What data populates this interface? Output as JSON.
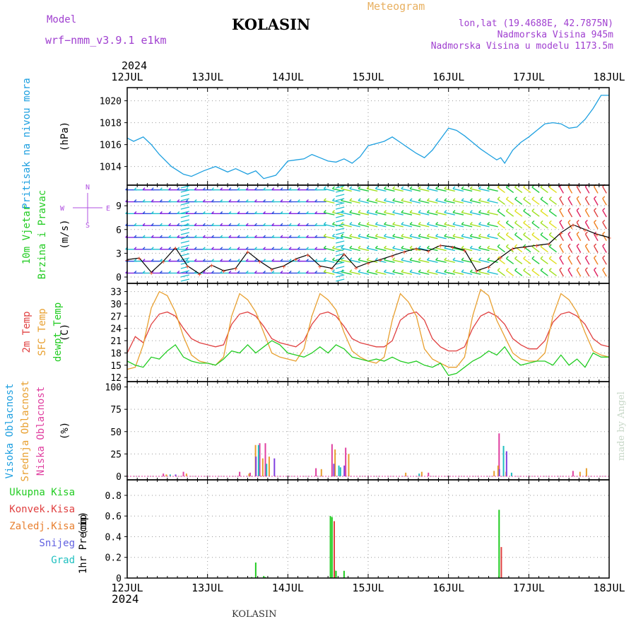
{
  "header": {
    "model_label": "Model",
    "model_name": "wrf−nmm_v3.9.1  e1km",
    "station": "KOLASIN",
    "meteogram": "Meteogram",
    "lonlat": "lon,lat (19.4688E, 42.7875N)",
    "elevation": "Nadmorska Visina 945m",
    "model_elevation": "Nadmorska Visina u modelu 1173.5m",
    "year": "2024",
    "footer_station": "KOLASIN",
    "credit": "made by Angel"
  },
  "x_ticks": [
    "12JUL",
    "13JUL",
    "14JUL",
    "15JUL",
    "16JUL",
    "17JUL",
    "18JUL"
  ],
  "chart_data": [
    {
      "type": "line",
      "panel": "pressure",
      "ylabel": "Pritisak na nivou mora",
      "unit": "(hPa)",
      "yticks": [
        1014,
        1016,
        1018,
        1020
      ],
      "ylim": [
        1012.3,
        1021.2
      ],
      "xlim": [
        0,
        6
      ],
      "series": [
        {
          "color": "#1ea0e0",
          "x": [
            0,
            0.08,
            0.2,
            0.3,
            0.4,
            0.55,
            0.7,
            0.8,
            0.95,
            1.1,
            1.25,
            1.35,
            1.5,
            1.6,
            1.7,
            1.85,
            2.0,
            2.1,
            2.2,
            2.3,
            2.4,
            2.5,
            2.6,
            2.7,
            2.8,
            2.9,
            3.0,
            3.1,
            3.2,
            3.3,
            3.4,
            3.5,
            3.6,
            3.7,
            3.8,
            3.9,
            4.0,
            4.1,
            4.2,
            4.3,
            4.4,
            4.5,
            4.6,
            4.65,
            4.7,
            4.8,
            4.9,
            5.0,
            5.1,
            5.2,
            5.3,
            5.4,
            5.5,
            5.6,
            5.7,
            5.8,
            5.9,
            6.0
          ],
          "y": [
            1016.6,
            1016.3,
            1016.7,
            1016.0,
            1015.1,
            1014.0,
            1013.3,
            1013.1,
            1013.6,
            1014.0,
            1013.5,
            1013.8,
            1013.3,
            1013.6,
            1012.9,
            1013.2,
            1014.5,
            1014.6,
            1014.7,
            1015.1,
            1014.8,
            1014.5,
            1014.4,
            1014.7,
            1014.3,
            1014.9,
            1015.9,
            1016.1,
            1016.3,
            1016.7,
            1016.2,
            1015.7,
            1015.2,
            1014.8,
            1015.5,
            1016.5,
            1017.5,
            1017.3,
            1016.8,
            1016.2,
            1015.6,
            1015.1,
            1014.6,
            1014.8,
            1014.3,
            1015.5,
            1016.2,
            1016.7,
            1017.3,
            1017.9,
            1018.0,
            1017.9,
            1017.5,
            1017.6,
            1018.3,
            1019.3,
            1020.5,
            1020.5
          ]
        }
      ]
    },
    {
      "type": "scatter",
      "panel": "wind",
      "ylabel": "10m Vjetar",
      "ylabel2": "Brzina i Pravac",
      "unit": "(m/s)",
      "yticks": [
        0,
        3,
        6,
        9
      ],
      "ylim": [
        -0.8,
        11.6
      ],
      "xlim": [
        0,
        6
      ],
      "compass": {
        "n": "N",
        "s": "S",
        "w": "W",
        "e": "E"
      },
      "series": [
        {
          "name_note": "speed",
          "color": "#000000",
          "x": [
            0,
            0.15,
            0.3,
            0.45,
            0.6,
            0.75,
            0.9,
            1.05,
            1.2,
            1.35,
            1.5,
            1.65,
            1.8,
            1.95,
            2.1,
            2.25,
            2.4,
            2.55,
            2.7,
            2.85,
            3.0,
            3.15,
            3.3,
            3.45,
            3.6,
            3.75,
            3.9,
            4.05,
            4.2,
            4.35,
            4.5,
            4.65,
            4.8,
            4.95,
            5.1,
            5.25,
            5.4,
            5.55,
            5.7,
            5.85,
            6.0
          ],
          "y": [
            2.2,
            2.4,
            0.6,
            2.0,
            3.7,
            1.4,
            0.4,
            1.5,
            0.8,
            1.1,
            3.2,
            2.0,
            1.0,
            1.4,
            2.3,
            2.8,
            1.4,
            1.1,
            2.9,
            1.2,
            1.8,
            2.2,
            2.7,
            3.2,
            3.6,
            3.3,
            4.0,
            3.8,
            3.4,
            0.8,
            1.3,
            2.5,
            3.6,
            3.8,
            4.0,
            4.2,
            5.6,
            6.6,
            6.0,
            5.4,
            5.0
          ]
        }
      ]
    },
    {
      "type": "line",
      "panel": "temperature",
      "ylabel": "2m Temp",
      "ylabel2": "SFC Temp",
      "ylabel3": "dewpt Temp",
      "unit": "(C)",
      "yticks": [
        12,
        15,
        18,
        21,
        24,
        27,
        30,
        33
      ],
      "ylim": [
        11.0,
        35.0
      ],
      "xlim": [
        0,
        6
      ],
      "series": [
        {
          "color": "#e04040",
          "x": [
            0,
            0.1,
            0.2,
            0.3,
            0.4,
            0.5,
            0.6,
            0.7,
            0.8,
            0.9,
            1.0,
            1.1,
            1.2,
            1.3,
            1.4,
            1.5,
            1.6,
            1.7,
            1.8,
            1.9,
            2.0,
            2.1,
            2.2,
            2.3,
            2.4,
            2.5,
            2.6,
            2.7,
            2.8,
            2.9,
            3.0,
            3.1,
            3.2,
            3.3,
            3.4,
            3.5,
            3.6,
            3.7,
            3.8,
            3.9,
            4.0,
            4.1,
            4.2,
            4.3,
            4.4,
            4.5,
            4.6,
            4.7,
            4.8,
            4.9,
            5.0,
            5.1,
            5.2,
            5.3,
            5.4,
            5.5,
            5.6,
            5.7,
            5.8,
            5.9,
            6.0
          ],
          "y": [
            18,
            22,
            20.5,
            25,
            27.5,
            28,
            27,
            24,
            21.5,
            20.5,
            20,
            19.5,
            20,
            25,
            27.5,
            28,
            27,
            24.5,
            21.5,
            20.5,
            20,
            19.5,
            21,
            25,
            27.5,
            28,
            27,
            24.5,
            21.5,
            20.5,
            20,
            19.5,
            19.5,
            21,
            26,
            27.5,
            28,
            26,
            21.5,
            19.5,
            18.5,
            18.5,
            19.5,
            24,
            27,
            28,
            27,
            25,
            21.5,
            20,
            19,
            19,
            21,
            25.5,
            27.5,
            28,
            27,
            25,
            21.5,
            20,
            19.5
          ]
        },
        {
          "color": "#e8a030",
          "x": [
            0,
            0.1,
            0.2,
            0.3,
            0.4,
            0.5,
            0.6,
            0.7,
            0.8,
            0.9,
            1.0,
            1.1,
            1.2,
            1.3,
            1.4,
            1.5,
            1.6,
            1.7,
            1.8,
            1.9,
            2.0,
            2.1,
            2.2,
            2.3,
            2.4,
            2.5,
            2.6,
            2.7,
            2.8,
            2.9,
            3.0,
            3.1,
            3.2,
            3.3,
            3.4,
            3.5,
            3.6,
            3.7,
            3.8,
            3.9,
            4.0,
            4.1,
            4.2,
            4.3,
            4.4,
            4.5,
            4.6,
            4.7,
            4.8,
            4.9,
            5.0,
            5.1,
            5.2,
            5.3,
            5.4,
            5.5,
            5.6,
            5.7,
            5.8,
            5.9,
            6.0
          ],
          "y": [
            14,
            14.5,
            20,
            29,
            33,
            32,
            28,
            22,
            17.5,
            16,
            15.5,
            15,
            17,
            27,
            32.5,
            31,
            28,
            23,
            18,
            17,
            16.5,
            16,
            19,
            27,
            32.5,
            31,
            28.5,
            23,
            18.5,
            17,
            16,
            15.5,
            17,
            26,
            32.5,
            30.5,
            27,
            19,
            16.5,
            15.5,
            14.5,
            14.5,
            17,
            27,
            33.5,
            32,
            26,
            22,
            18,
            16.5,
            16,
            16,
            18,
            27,
            32.5,
            31,
            28,
            23,
            18.5,
            17.5,
            17
          ]
        },
        {
          "color": "#22cc22",
          "x": [
            0,
            0.1,
            0.2,
            0.3,
            0.4,
            0.5,
            0.6,
            0.7,
            0.8,
            0.9,
            1.0,
            1.1,
            1.2,
            1.3,
            1.4,
            1.5,
            1.6,
            1.7,
            1.8,
            1.9,
            2.0,
            2.1,
            2.2,
            2.3,
            2.4,
            2.5,
            2.6,
            2.7,
            2.8,
            2.9,
            3.0,
            3.1,
            3.2,
            3.3,
            3.4,
            3.5,
            3.6,
            3.7,
            3.8,
            3.9,
            4.0,
            4.1,
            4.2,
            4.3,
            4.4,
            4.5,
            4.6,
            4.7,
            4.8,
            4.9,
            5.0,
            5.1,
            5.2,
            5.3,
            5.4,
            5.5,
            5.6,
            5.7,
            5.8,
            5.9,
            6.0
          ],
          "y": [
            16,
            15,
            14.5,
            17,
            16.5,
            18.5,
            20,
            17,
            16,
            15.5,
            15.5,
            15,
            16.5,
            18.5,
            18,
            20,
            18,
            19.5,
            21,
            20,
            18,
            17.5,
            17,
            18,
            19.5,
            18,
            20,
            19,
            17,
            16.5,
            16,
            16.5,
            16,
            17,
            16,
            15.5,
            16,
            15,
            14.5,
            15.5,
            12.5,
            13,
            14.5,
            16,
            17,
            18.5,
            17.5,
            19.5,
            16.5,
            15,
            15.5,
            16,
            16,
            15,
            17.5,
            15,
            16.5,
            14.5,
            18,
            17,
            17
          ]
        }
      ]
    },
    {
      "type": "bar",
      "panel": "clouds",
      "ylabel": "Visoka Oblacnost",
      "ylabel2": "Srednja Oblacnost",
      "ylabel3": "Niska Oblacnost",
      "unit": "(%)",
      "yticks": [
        0,
        25,
        50,
        75,
        100
      ],
      "ylim": [
        -4,
        106
      ],
      "xlim": [
        0,
        6
      ],
      "series": [
        {
          "color": "#e040a0",
          "x": [
            0.45,
            0.7,
            1.4,
            1.53,
            1.65,
            1.72,
            2.35,
            2.55,
            2.72,
            3.75,
            4.63,
            5.55
          ],
          "y": [
            3,
            5,
            5,
            4,
            37,
            37,
            9,
            36,
            32,
            4,
            48,
            6
          ]
        },
        {
          "color": "#e8a030",
          "x": [
            0.47,
            0.72,
            1.5,
            1.58,
            1.67,
            1.75,
            2.4,
            2.57,
            2.74,
            3.45,
            3.65,
            4.55,
            4.6,
            4.7,
            5.62,
            5.7
          ],
          "y": [
            2,
            3,
            3,
            35,
            20,
            22,
            8,
            30,
            25,
            4,
            5,
            6,
            12,
            5,
            5,
            9
          ]
        },
        {
          "color": "#20c0c0",
          "x": [
            0.5,
            1.6,
            1.7,
            2.6,
            2.62,
            3.6,
            4.65,
            4.75
          ],
          "y": [
            2,
            35,
            14,
            12,
            10,
            3,
            34,
            4
          ]
        },
        {
          "color": "#8040e0",
          "x": [
            0.55,
            1.55,
            1.78,
            2.52,
            2.65,
            4.58,
            4.67
          ],
          "y": [
            2,
            22,
            20,
            14,
            12,
            8,
            28
          ]
        }
      ]
    },
    {
      "type": "bar",
      "panel": "precip",
      "ylabel": "1hr Precip",
      "unit": "(mm)",
      "yticks": [
        0,
        0.2,
        0.4,
        0.6,
        0.8
      ],
      "ylim": [
        0,
        0.95
      ],
      "xlim": [
        0,
        6
      ],
      "legend": [
        "Ukupna Kisa",
        "Konvek.Kisa",
        "Zaledj.Kisa",
        "Snijeg",
        "Grad"
      ],
      "legend_colors": [
        "#22cc22",
        "#e04040",
        "#e88030",
        "#6060e0",
        "#20c0c0"
      ],
      "series": [
        {
          "color": "#22cc22",
          "x": [
            1.55,
            1.6,
            1.7,
            1.72,
            2.53,
            2.55,
            2.58,
            2.6,
            2.7,
            4.63
          ],
          "y": [
            0.01,
            0.15,
            0.02,
            0.01,
            0.6,
            0.59,
            0.08,
            0.07,
            0.07,
            0.66
          ]
        },
        {
          "color": "#e04040",
          "x": [
            2.56,
            4.64
          ],
          "y": [
            0.55,
            0.3
          ]
        }
      ]
    }
  ]
}
